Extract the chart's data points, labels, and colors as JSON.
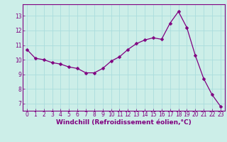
{
  "x": [
    0,
    1,
    2,
    3,
    4,
    5,
    6,
    7,
    8,
    9,
    10,
    11,
    12,
    13,
    14,
    15,
    16,
    17,
    18,
    19,
    20,
    21,
    22,
    23
  ],
  "y": [
    10.7,
    10.1,
    10.0,
    9.8,
    9.7,
    9.5,
    9.4,
    9.1,
    9.1,
    9.4,
    9.9,
    10.2,
    10.7,
    11.1,
    11.35,
    11.5,
    11.4,
    12.5,
    13.3,
    12.2,
    10.3,
    8.7,
    7.6,
    6.8
  ],
  "line_color": "#800080",
  "marker": "D",
  "marker_size": 2.5,
  "bg_color": "#cceee8",
  "grid_color": "#aadddd",
  "xlabel": "Windchill (Refroidissement éolien,°C)",
  "tick_color": "#800080",
  "ylim": [
    6.5,
    13.8
  ],
  "yticks": [
    7,
    8,
    9,
    10,
    11,
    12,
    13
  ],
  "xticks": [
    0,
    1,
    2,
    3,
    4,
    5,
    6,
    7,
    8,
    9,
    10,
    11,
    12,
    13,
    14,
    15,
    16,
    17,
    18,
    19,
    20,
    21,
    22,
    23
  ],
  "tick_fontsize": 5.5,
  "xlabel_fontsize": 6.5
}
